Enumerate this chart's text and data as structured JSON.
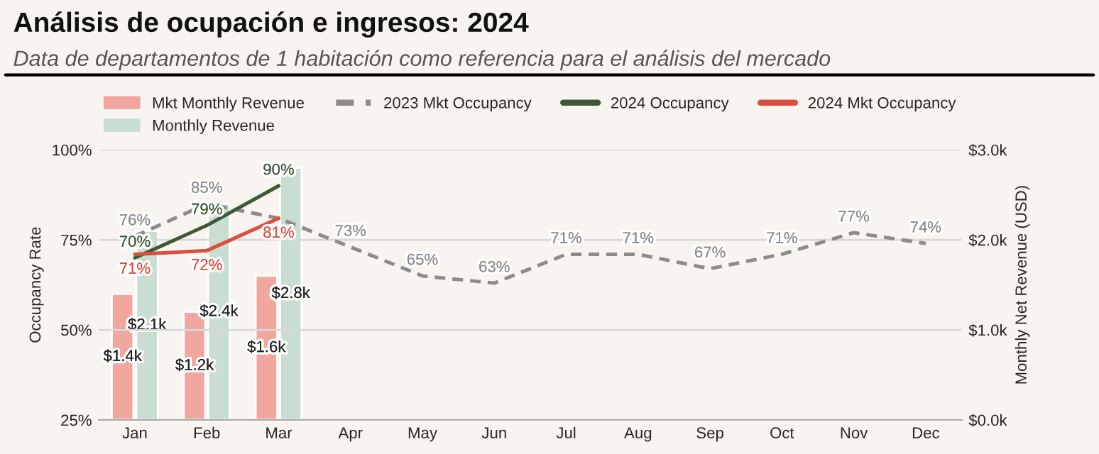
{
  "chart_data": {
    "type": "bar",
    "title": "Análisis de ocupación e ingresos: 2024",
    "subtitle": "Data de departamentos de 1 habitación como referencia para el análisis del mercado",
    "ylabel": "Occupancy Rate",
    "y2label": "Monthly Net Revenue (USD)",
    "categories": [
      "Jan",
      "Feb",
      "Mar",
      "Apr",
      "May",
      "Jun",
      "Jul",
      "Aug",
      "Sep",
      "Oct",
      "Nov",
      "Dec"
    ],
    "series": [
      {
        "name": "Mkt Monthly Revenue",
        "axis": "y2",
        "color": "#f1a7a0",
        "values": [
          1400,
          1200,
          1600,
          null,
          null,
          null,
          null,
          null,
          null,
          null,
          null,
          null
        ],
        "value_labels": [
          "$1.4k",
          "$1.2k",
          "$1.6k",
          null,
          null,
          null,
          null,
          null,
          null,
          null,
          null,
          null
        ]
      },
      {
        "name": "Monthly Revenue",
        "axis": "y2",
        "color": "#c9ddd1",
        "values": [
          2100,
          2400,
          2800,
          null,
          null,
          null,
          null,
          null,
          null,
          null,
          null,
          null
        ],
        "value_labels": [
          "$2.1k",
          "$2.4k",
          "$2.8k",
          null,
          null,
          null,
          null,
          null,
          null,
          null,
          null,
          null
        ]
      },
      {
        "name": "2023 Mkt Occupancy",
        "type": "line",
        "line_style": "dashed",
        "color": "#8c8c8c",
        "values": [
          76,
          85,
          81,
          73,
          65,
          63,
          71,
          71,
          67,
          71,
          77,
          74
        ],
        "value_labels": [
          "76%",
          "85%",
          null,
          "73%",
          "65%",
          "63%",
          "71%",
          "71%",
          "67%",
          "71%",
          "77%",
          "74%"
        ]
      },
      {
        "name": "2024 Occupancy",
        "type": "line",
        "line_style": "solid",
        "color": "#3d5a35",
        "values": [
          70,
          79,
          90,
          null,
          null,
          null,
          null,
          null,
          null,
          null,
          null,
          null
        ],
        "value_labels": [
          "70%",
          "79%",
          "90%",
          null,
          null,
          null,
          null,
          null,
          null,
          null,
          null,
          null
        ]
      },
      {
        "name": "2024 Mkt Occupancy",
        "type": "line",
        "line_style": "solid",
        "color": "#d9503f",
        "values": [
          71,
          72,
          81,
          null,
          null,
          null,
          null,
          null,
          null,
          null,
          null,
          null
        ],
        "value_labels": [
          "71%",
          "72%",
          "81%",
          null,
          null,
          null,
          null,
          null,
          null,
          null,
          null,
          null
        ]
      }
    ],
    "ylim": [
      25,
      100
    ],
    "yticks": [
      {
        "value": 25,
        "label": "25%"
      },
      {
        "value": 50,
        "label": "50%"
      },
      {
        "value": 75,
        "label": "75%"
      },
      {
        "value": 100,
        "label": "100%"
      }
    ],
    "y2lim": [
      0,
      3000
    ],
    "y2ticks": [
      {
        "value": 0,
        "label": "$0.0k"
      },
      {
        "value": 1000,
        "label": "$1.0k"
      },
      {
        "value": 2000,
        "label": "$2.0k"
      },
      {
        "value": 3000,
        "label": "$3.0k"
      }
    ],
    "grid": "y",
    "legend": "top",
    "marker": "none"
  }
}
